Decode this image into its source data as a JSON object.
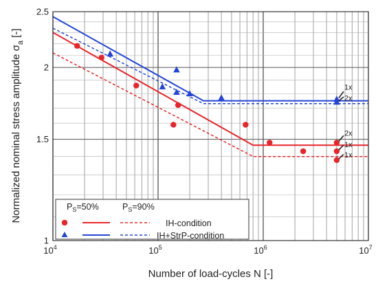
{
  "chart_data": {
    "type": "scatter",
    "xlabel": "Number of load-cycles N [-]",
    "ylabel_main": "Normalized nominal stress amplitude σ",
    "ylabel_sub": "a",
    "ylabel_unit": " [-]",
    "x_scale": "log",
    "y_scale": "log",
    "xlim": [
      10000,
      10000000
    ],
    "ylim": [
      1,
      2.5
    ],
    "grid": true,
    "x_ticks": [
      {
        "value": 10000,
        "base": "10",
        "exp": "4"
      },
      {
        "value": 100000,
        "base": "10",
        "exp": "5"
      },
      {
        "value": 1000000,
        "base": "10",
        "exp": "6"
      },
      {
        "value": 10000000,
        "base": "10",
        "exp": "7"
      }
    ],
    "y_ticks": [
      {
        "value": 1,
        "label": "1"
      },
      {
        "value": 1.5,
        "label": "1.5"
      },
      {
        "value": 2,
        "label": "2"
      },
      {
        "value": 2.5,
        "label": "2.5"
      }
    ],
    "colors": {
      "red": "#e8252a",
      "blue": "#2345d9",
      "grid": "#8a8a8a"
    },
    "series": [
      {
        "condition": "IH",
        "marker": "circle",
        "color": "red",
        "points": [
          [
            17000,
            2.18
          ],
          [
            29000,
            2.08
          ],
          [
            62000,
            1.86
          ],
          [
            140000,
            1.59
          ],
          [
            155000,
            1.72
          ],
          [
            680000,
            1.59
          ],
          [
            1150000,
            1.48
          ],
          [
            2400000,
            1.43
          ],
          [
            5000000,
            1.48
          ],
          [
            5000000,
            1.43
          ],
          [
            5000000,
            1.38
          ]
        ]
      },
      {
        "condition": "IH+StrP",
        "marker": "triangle",
        "color": "blue",
        "points": [
          [
            35000,
            2.11
          ],
          [
            110000,
            1.85
          ],
          [
            150000,
            1.98
          ],
          [
            150000,
            1.81
          ],
          [
            200000,
            1.8
          ],
          [
            400000,
            1.77
          ],
          [
            5000000,
            1.76
          ],
          [
            5000000,
            1.74
          ]
        ]
      }
    ],
    "curves": [
      {
        "condition": "IH",
        "probability": "50%",
        "color": "red",
        "style": "solid",
        "points": [
          [
            10000,
            2.3
          ],
          [
            800000,
            1.465
          ],
          [
            10000000,
            1.465
          ]
        ]
      },
      {
        "condition": "IH",
        "probability": "90%",
        "color": "red",
        "style": "dashed",
        "points": [
          [
            10000,
            2.12
          ],
          [
            800000,
            1.4
          ],
          [
            10000000,
            1.4
          ]
        ]
      },
      {
        "condition": "IH+StrP",
        "probability": "50%",
        "color": "blue",
        "style": "solid",
        "points": [
          [
            10000,
            2.45
          ],
          [
            270000,
            1.75
          ],
          [
            10000000,
            1.75
          ]
        ]
      },
      {
        "condition": "IH+StrP",
        "probability": "90%",
        "color": "blue",
        "style": "dashed",
        "points": [
          [
            10000,
            2.34
          ],
          [
            270000,
            1.73
          ],
          [
            10000000,
            1.73
          ]
        ]
      }
    ],
    "runout_annotations": [
      {
        "text": "1x",
        "x": 5000000,
        "y": 1.76,
        "color": "blue"
      },
      {
        "text": "2x",
        "x": 5000000,
        "y": 1.74,
        "color": "blue"
      },
      {
        "text": "2x",
        "x": 5000000,
        "y": 1.48,
        "color": "red"
      },
      {
        "text": "1x",
        "x": 5000000,
        "y": 1.43,
        "color": "red"
      },
      {
        "text": "1x",
        "x": 5000000,
        "y": 1.38,
        "color": "red"
      }
    ],
    "legend": {
      "placement": "bottom-left",
      "header_p50_main": "P",
      "header_p50_sub": "S",
      "header_p50_rest": "=50%",
      "header_p90_main": "P",
      "header_p90_sub": "S",
      "header_p90_rest": "=90%",
      "rows": [
        {
          "label": "IH-condition",
          "color": "red",
          "marker": "circle"
        },
        {
          "label": "IH+StrP-condition",
          "color": "blue",
          "marker": "triangle"
        }
      ]
    }
  }
}
